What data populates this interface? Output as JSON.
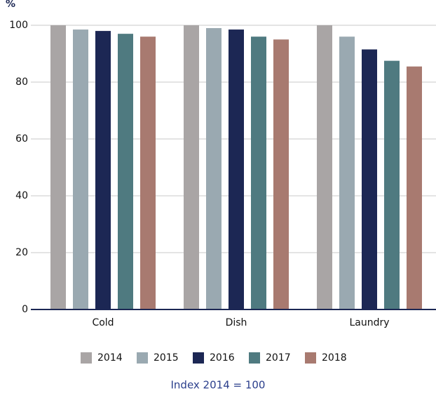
{
  "chart_data": {
    "type": "bar",
    "y_axis_label": "%",
    "note": "Index 2014 = 100",
    "categories": [
      "Cold",
      "Dish",
      "Laundry"
    ],
    "series": [
      {
        "name": "2014",
        "color": "#a9a5a5",
        "values": [
          100,
          100,
          100
        ]
      },
      {
        "name": "2015",
        "color": "#9aa9b1",
        "values": [
          98.5,
          99,
          96
        ]
      },
      {
        "name": "2016",
        "color": "#1c2754",
        "values": [
          98,
          98.5,
          91.5
        ]
      },
      {
        "name": "2017",
        "color": "#4f7a80",
        "values": [
          97,
          96,
          87.5
        ]
      },
      {
        "name": "2018",
        "color": "#a87a70",
        "values": [
          96,
          95,
          85.5
        ]
      }
    ],
    "ylim": [
      0,
      100
    ],
    "yticks": [
      0,
      20,
      40,
      60,
      80,
      100
    ],
    "grid": true,
    "legend": "bottom"
  }
}
